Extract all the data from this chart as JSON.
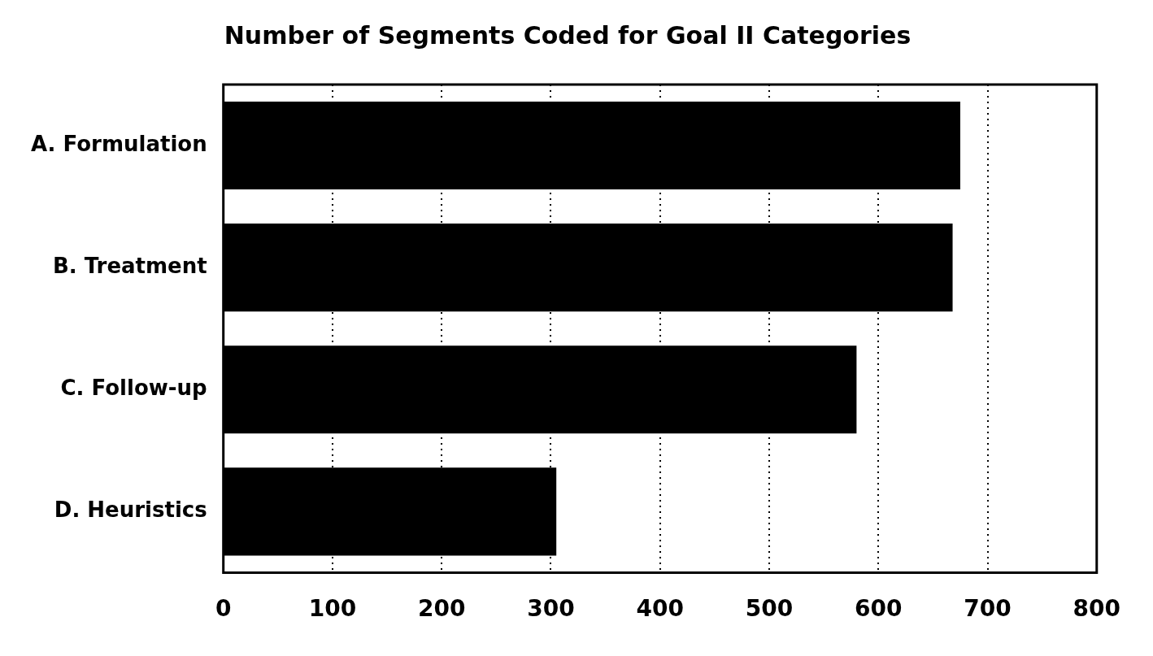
{
  "chart_data": {
    "type": "bar",
    "orientation": "horizontal",
    "title": "Number of Segments Coded for Goal II Categories",
    "categories": [
      "A. Formulation",
      "B. Treatment",
      "C. Follow-up",
      "D. Heuristics"
    ],
    "values": [
      675,
      668,
      580,
      305
    ],
    "color": "#000000",
    "xlim": [
      0,
      800
    ],
    "xticks": [
      0,
      100,
      200,
      300,
      400,
      500,
      600,
      700,
      800
    ],
    "grid": "x"
  }
}
